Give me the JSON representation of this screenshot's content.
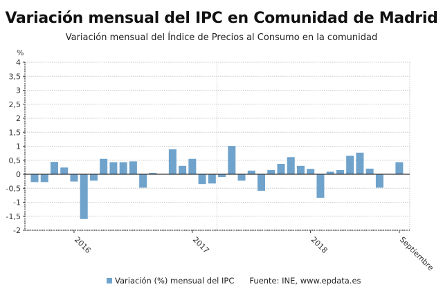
{
  "title": "Variación mensual del IPC en Comunidad de Madrid",
  "subtitle": "Variación mensual del Índice de Precios al Consumo en la comunidad",
  "legend": {
    "series_label": "Variación (%) mensual del IPC",
    "source": "Fuente: INE, www.epdata.es"
  },
  "colors": {
    "bar": "#6fa3cc",
    "zero_line": "#333333",
    "grid": "#c8c8c8"
  },
  "chart_data": {
    "type": "bar",
    "ylabel": "%",
    "ylim": [
      -2,
      4
    ],
    "yticks": [
      "-2",
      "-1,5",
      "-1",
      "-0,5",
      "0",
      "0,5",
      "1",
      "1,5",
      "2",
      "2,5",
      "3",
      "3,5",
      "4"
    ],
    "ytick_values": [
      -2,
      -1.5,
      -1,
      -0.5,
      0,
      0.5,
      1,
      1.5,
      2,
      2.5,
      3,
      3.5,
      4
    ],
    "grid": true,
    "legend_position": "bottom",
    "xticks": [
      {
        "label": "2016",
        "index": 4
      },
      {
        "label": "2017",
        "index": 16
      },
      {
        "label": "2018",
        "index": 28
      },
      {
        "label": "Septiembre",
        "index": 37
      }
    ],
    "values": [
      -0.28,
      -0.28,
      0.44,
      0.24,
      -0.26,
      -1.6,
      -0.23,
      0.55,
      0.43,
      0.43,
      0.46,
      -0.48,
      0.05,
      0.0,
      0.89,
      0.3,
      0.55,
      -0.35,
      -0.33,
      -0.1,
      1.01,
      -0.23,
      0.13,
      -0.59,
      0.15,
      0.37,
      0.61,
      0.3,
      0.19,
      -0.84,
      0.09,
      0.15,
      0.66,
      0.77,
      0.2,
      -0.48,
      0.0,
      0.43
    ]
  }
}
